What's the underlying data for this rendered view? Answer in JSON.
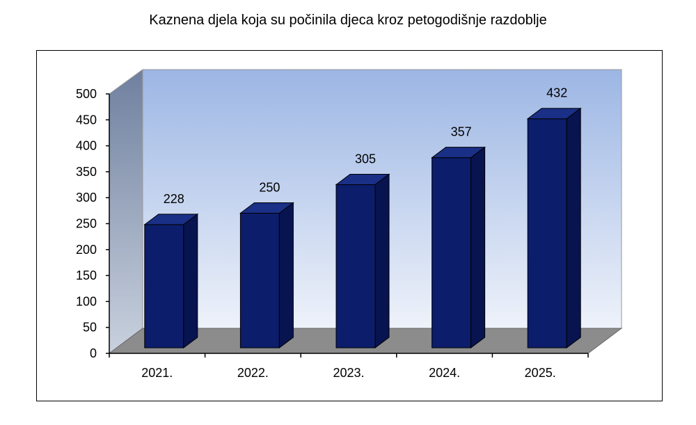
{
  "chart_data": {
    "type": "bar",
    "title": "Kaznena djela koja su počinila djeca kroz petogodišnje razdoblje",
    "categories": [
      "2021.",
      "2022.",
      "2023.",
      "2024.",
      "2025."
    ],
    "values": [
      228,
      250,
      305,
      357,
      432
    ],
    "data_labels": [
      "228",
      "250",
      "305",
      "357",
      "432"
    ],
    "ylim": [
      0,
      500
    ],
    "yticks": [
      0,
      50,
      100,
      150,
      200,
      250,
      300,
      350,
      400,
      450,
      500
    ],
    "xlabel": "",
    "ylabel": "",
    "grid": false,
    "legend": "none",
    "style": "3d-column"
  },
  "colors": {
    "bar_front": "#0c1d6b",
    "bar_top": "#1a2f86",
    "bar_side": "#081450",
    "wall_top": "#9cb6e4",
    "wall_bottom": "#e8eef9",
    "side_wall": "#7f8ea6",
    "floor": "#8c8c8c"
  }
}
